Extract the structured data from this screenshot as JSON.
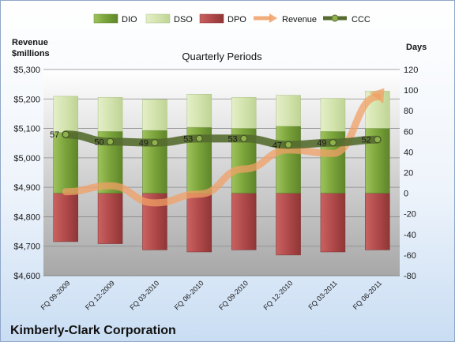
{
  "chart_data": {
    "type": "bar",
    "title": "Kimberly-Clark Corporation",
    "subtitle": "Quarterly Periods",
    "left_axis_label_line1": "Revenue",
    "left_axis_label_line2": "$millions",
    "right_axis_label": "Days",
    "categories": [
      "FQ 09-2009",
      "FQ 12-2009",
      "FQ 03-2010",
      "FQ 06-2010",
      "FQ 09-2010",
      "FQ 12-2010",
      "FQ 03-2011",
      "FQ 06-2011"
    ],
    "left_axis": {
      "ylim": [
        4600,
        5300
      ],
      "ticks": [
        4600,
        4700,
        4800,
        4900,
        5000,
        5100,
        5200,
        5300
      ],
      "tick_labels": [
        "$4,600",
        "$4,700",
        "$4,800",
        "$4,900",
        "$5,000",
        "$5,100",
        "$5,200",
        "$5,300"
      ]
    },
    "right_axis": {
      "ylim": [
        -80,
        120
      ],
      "ticks": [
        -80,
        -60,
        -40,
        -20,
        0,
        20,
        40,
        60,
        80,
        100,
        120
      ],
      "tick_labels": [
        "-80",
        "-60",
        "-40",
        "-20",
        "0",
        "20",
        "40",
        "60",
        "80",
        "100",
        "120"
      ]
    },
    "grid": true,
    "legend_position": "top",
    "series": [
      {
        "name": "DIO",
        "kind": "bar",
        "axis": "right",
        "color": "#7fa83e",
        "values": [
          59,
          60,
          61,
          64,
          63,
          65,
          60,
          63
        ]
      },
      {
        "name": "DSO",
        "kind": "bar",
        "axis": "right",
        "color": "#d7e6b4",
        "values": [
          35,
          33,
          30,
          32,
          30,
          30,
          32,
          36
        ]
      },
      {
        "name": "DPO",
        "kind": "bar",
        "axis": "right",
        "color": "#b84e4d",
        "values": [
          -47,
          -49,
          -55,
          -57,
          -55,
          -60,
          -57,
          -55
        ]
      },
      {
        "name": "Revenue",
        "kind": "line",
        "axis": "left",
        "color": "#f0a066",
        "values": [
          4885,
          4905,
          4847,
          4877,
          4962,
          5027,
          5015,
          5207
        ]
      },
      {
        "name": "CCC",
        "kind": "line",
        "axis": "right",
        "color": "#556b2f",
        "values": [
          57,
          50,
          49,
          53,
          53,
          47,
          49,
          52
        ],
        "labels": [
          "57",
          "50",
          "49",
          "53",
          "53",
          "47",
          "49",
          "52"
        ]
      }
    ]
  }
}
